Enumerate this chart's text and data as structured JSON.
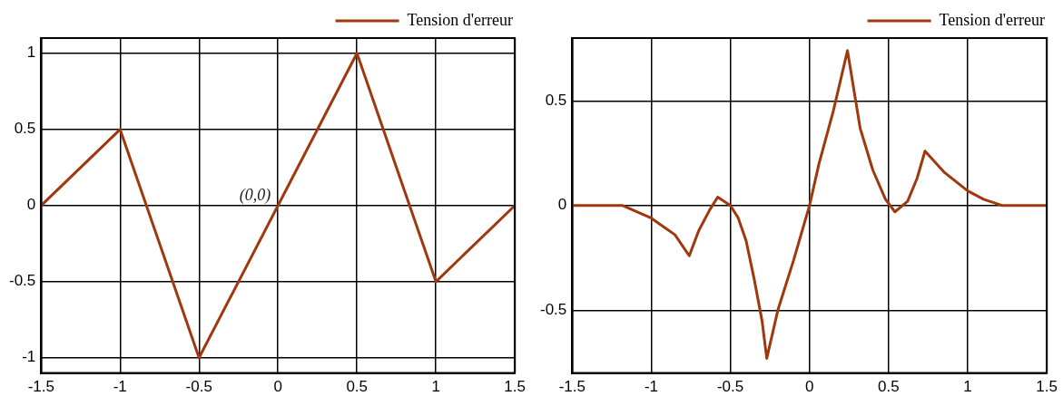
{
  "chart_data": [
    {
      "type": "line",
      "series": [
        {
          "name": "Tension d'erreur",
          "color": "#a0380e",
          "x": [
            -1.5,
            -1,
            -0.5,
            0,
            0.5,
            1,
            1.5
          ],
          "values": [
            0,
            0.5,
            -1,
            0,
            1,
            -0.5,
            0
          ]
        }
      ],
      "xlim": [
        -1.5,
        1.5
      ],
      "xticks": [
        -1.5,
        -1,
        -0.5,
        0,
        0.5,
        1,
        1.5
      ],
      "ylim": [
        -1.1,
        1.1
      ],
      "yticks": [
        -1,
        -0.5,
        0,
        0.5,
        1
      ],
      "grid": true,
      "legend": "top right",
      "annotations": [
        {
          "text": "(0,0)",
          "x": 0,
          "y": 0
        }
      ]
    },
    {
      "type": "line",
      "series": [
        {
          "name": "Tension d'erreur",
          "color": "#a0380e",
          "x": [
            -1.5,
            -1.18,
            -1.0,
            -0.85,
            -0.76,
            -0.7,
            -0.63,
            -0.58,
            -0.5,
            -0.45,
            -0.4,
            -0.35,
            -0.3,
            -0.27,
            -0.2,
            -0.1,
            0,
            0.06,
            0.15,
            0.24,
            0.32,
            0.4,
            0.48,
            0.54,
            0.62,
            0.68,
            0.73,
            0.85,
            1.0,
            1.1,
            1.22,
            1.5
          ],
          "values": [
            0,
            0,
            -0.06,
            -0.14,
            -0.24,
            -0.12,
            -0.02,
            0.04,
            0,
            -0.06,
            -0.17,
            -0.35,
            -0.55,
            -0.73,
            -0.5,
            -0.26,
            0,
            0.2,
            0.45,
            0.74,
            0.37,
            0.17,
            0.03,
            -0.03,
            0.02,
            0.13,
            0.26,
            0.16,
            0.07,
            0.03,
            0,
            0
          ]
        }
      ],
      "xlim": [
        -1.5,
        1.5
      ],
      "xticks": [
        -1.5,
        -1,
        -0.5,
        0,
        0.5,
        1,
        1.5
      ],
      "ylim": [
        -0.8,
        0.8
      ],
      "yticks": [
        -0.5,
        0,
        0.5
      ],
      "grid": true,
      "legend": "top right"
    }
  ]
}
